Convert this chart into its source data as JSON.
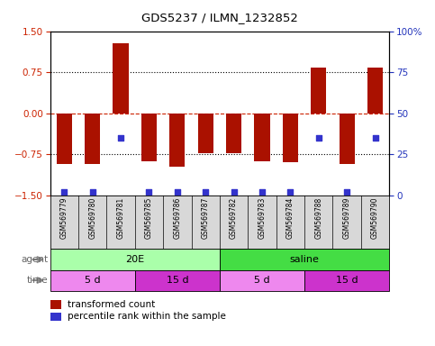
{
  "title": "GDS5237 / ILMN_1232852",
  "samples": [
    "GSM569779",
    "GSM569780",
    "GSM569781",
    "GSM569785",
    "GSM569786",
    "GSM569787",
    "GSM569782",
    "GSM569783",
    "GSM569784",
    "GSM569788",
    "GSM569789",
    "GSM569790"
  ],
  "bar_values": [
    -0.93,
    -0.92,
    1.28,
    -0.87,
    -0.97,
    -0.73,
    -0.72,
    -0.87,
    -0.9,
    0.83,
    -0.92,
    0.83
  ],
  "percentile_values": [
    2,
    2,
    35,
    2,
    2,
    2,
    2,
    2,
    2,
    35,
    2,
    35
  ],
  "bar_color": "#aa1100",
  "dot_color": "#3333cc",
  "ylim": [
    -1.5,
    1.5
  ],
  "y_ticks": [
    -1.5,
    -0.75,
    0,
    0.75,
    1.5
  ],
  "right_yticks": [
    0,
    25,
    50,
    75,
    100
  ],
  "right_ytick_labels": [
    "0",
    "25",
    "50",
    "75",
    "100%"
  ],
  "agent_20E_color": "#aaffaa",
  "agent_saline_color": "#44dd44",
  "time_5d_color": "#ee88ee",
  "time_15d_color": "#cc33cc",
  "legend_bar_label": "transformed count",
  "legend_dot_label": "percentile rank within the sample"
}
